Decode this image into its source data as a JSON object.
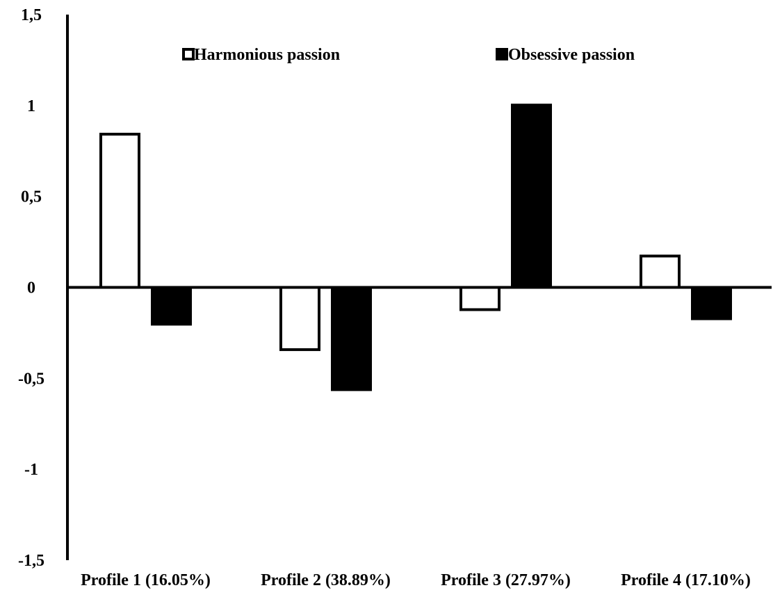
{
  "chart_data": {
    "type": "bar",
    "title": "",
    "xlabel": "",
    "ylabel": "",
    "ylim": [
      -1.5,
      1.5
    ],
    "yticks": [
      {
        "value": 1.5,
        "label": "1,5"
      },
      {
        "value": 1,
        "label": "1"
      },
      {
        "value": 0.5,
        "label": "0,5"
      },
      {
        "value": 0,
        "label": "0"
      },
      {
        "value": -0.5,
        "label": "-0,5"
      },
      {
        "value": -1,
        "label": "-1"
      },
      {
        "value": -1.5,
        "label": "-1,5"
      }
    ],
    "categories": [
      "Profile 1 (16.05%)",
      "Profile 2 (38.89%)",
      "Profile 3 (27.97%)",
      "Profile 4 (17.10%)"
    ],
    "series": [
      {
        "name": "Harmonious passion",
        "fill": "#ffffff",
        "stroke": "#000000",
        "values": [
          0.85,
          -0.35,
          -0.13,
          0.18
        ]
      },
      {
        "name": "Obsessive passion",
        "fill": "#000000",
        "stroke": "#000000",
        "values": [
          -0.21,
          -0.57,
          1.01,
          -0.18
        ]
      }
    ],
    "legend": {
      "placement": "top"
    },
    "grid": false
  }
}
